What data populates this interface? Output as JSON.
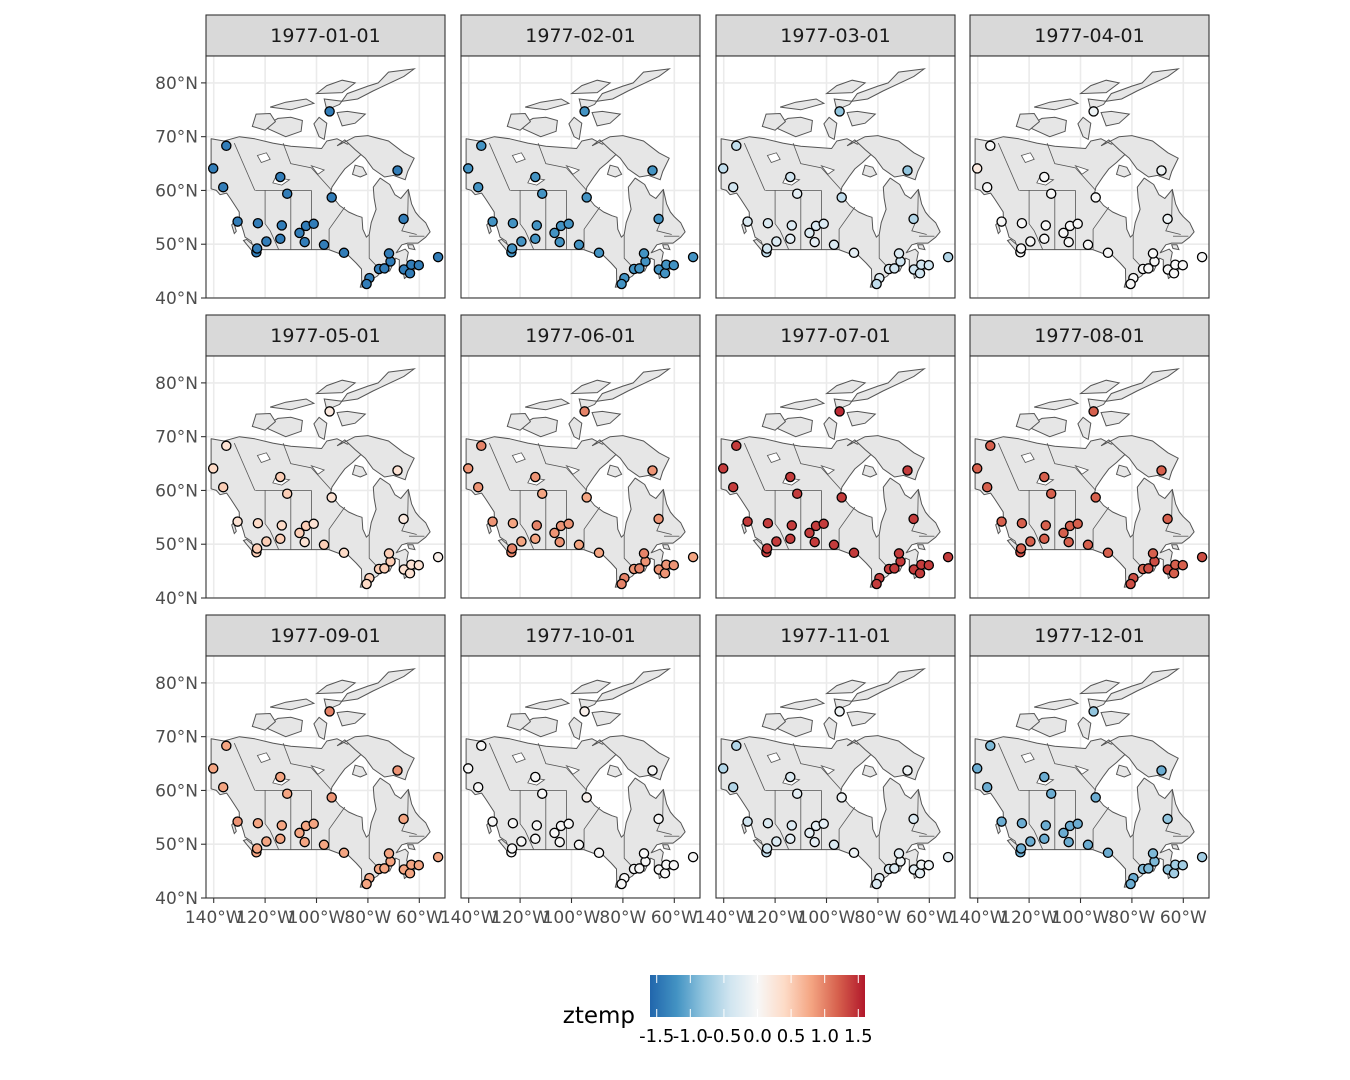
{
  "chart_data": {
    "type": "map",
    "region": "Canada",
    "facet_labels": [
      "1977-01-01",
      "1977-02-01",
      "1977-03-01",
      "1977-04-01",
      "1977-05-01",
      "1977-06-01",
      "1977-07-01",
      "1977-08-01",
      "1977-09-01",
      "1977-10-01",
      "1977-11-01",
      "1977-12-01"
    ],
    "y_tick_labels": [
      "80°N",
      "70°N",
      "60°N",
      "50°N",
      "40°N"
    ],
    "y_tick_values": [
      80,
      70,
      60,
      50,
      40
    ],
    "x_tick_labels": [
      "140°W",
      "120°W",
      "100°W",
      "80°W",
      "60°W"
    ],
    "x_tick_values": [
      -140,
      -120,
      -100,
      -80,
      -60
    ],
    "xlim": [
      -143,
      -50
    ],
    "ylim": [
      40,
      85
    ],
    "grid": true,
    "legend": {
      "title": "ztemp",
      "position": "bottom",
      "tick_labels": [
        "-1.5",
        "-1.0",
        "-0.5",
        "0.0",
        "0.5",
        "1.0",
        "1.5"
      ],
      "tick_values": [
        -1.5,
        -1.0,
        -0.5,
        0.0,
        0.5,
        1.0,
        1.5
      ],
      "range": [
        -1.6,
        1.6
      ],
      "palette": [
        "#2166ac",
        "#4393c3",
        "#92c5de",
        "#d1e5f0",
        "#f7f7f7",
        "#fddbc7",
        "#f4a582",
        "#d6604d",
        "#b2182b"
      ]
    },
    "colors": {
      "land": "#e6e6e6",
      "border": "#555555",
      "panel_border": "#333333",
      "strip_fill": "#d9d9d9",
      "grid": "#ebebeb"
    },
    "stations": [
      {
        "lon": -140.2,
        "lat": 64.1
      },
      {
        "lon": -135.1,
        "lat": 68.3
      },
      {
        "lon": -136.3,
        "lat": 60.6
      },
      {
        "lon": -130.7,
        "lat": 54.2
      },
      {
        "lon": -123.4,
        "lat": 48.5
      },
      {
        "lon": -123.1,
        "lat": 49.2
      },
      {
        "lon": -119.5,
        "lat": 50.5
      },
      {
        "lon": -122.8,
        "lat": 53.9
      },
      {
        "lon": -114.1,
        "lat": 62.5
      },
      {
        "lon": -113.5,
        "lat": 53.5
      },
      {
        "lon": -114.1,
        "lat": 51.0
      },
      {
        "lon": -111.4,
        "lat": 59.4
      },
      {
        "lon": -106.6,
        "lat": 52.1
      },
      {
        "lon": -104.6,
        "lat": 50.4
      },
      {
        "lon": -104.1,
        "lat": 53.4
      },
      {
        "lon": -101.1,
        "lat": 53.8
      },
      {
        "lon": -97.1,
        "lat": 49.9
      },
      {
        "lon": -94.1,
        "lat": 58.7
      },
      {
        "lon": -94.9,
        "lat": 74.7
      },
      {
        "lon": -89.3,
        "lat": 48.4
      },
      {
        "lon": -79.4,
        "lat": 43.7
      },
      {
        "lon": -80.5,
        "lat": 42.6
      },
      {
        "lon": -75.7,
        "lat": 45.4
      },
      {
        "lon": -73.6,
        "lat": 45.5
      },
      {
        "lon": -71.2,
        "lat": 46.8
      },
      {
        "lon": -71.8,
        "lat": 48.3
      },
      {
        "lon": -68.5,
        "lat": 63.7
      },
      {
        "lon": -66.0,
        "lat": 45.3
      },
      {
        "lon": -66.1,
        "lat": 54.7
      },
      {
        "lon": -63.6,
        "lat": 44.6
      },
      {
        "lon": -63.1,
        "lat": 46.2
      },
      {
        "lon": -60.2,
        "lat": 46.1
      },
      {
        "lon": -52.7,
        "lat": 47.6
      }
    ],
    "ztemp": [
      [
        -1.4,
        -1.4,
        -1.4,
        -1.4,
        -1.4,
        -1.4,
        -1.4,
        -1.4,
        -1.4,
        -1.4,
        -1.4,
        -1.4,
        -1.4,
        -1.4,
        -1.4,
        -1.4,
        -1.4,
        -1.4,
        -1.4,
        -1.4,
        -1.4,
        -1.4,
        -1.4,
        -1.4,
        -1.4,
        -1.4,
        -1.4,
        -1.4,
        -1.4,
        -1.4,
        -1.4,
        -1.4,
        -1.4
      ],
      [
        -1.2,
        -1.2,
        -1.2,
        -1.2,
        -1.2,
        -1.2,
        -1.2,
        -1.2,
        -1.2,
        -1.2,
        -1.2,
        -1.2,
        -1.2,
        -1.2,
        -1.2,
        -1.2,
        -1.2,
        -1.2,
        -1.2,
        -1.2,
        -1.2,
        -1.2,
        -1.2,
        -1.2,
        -1.2,
        -1.2,
        -1.2,
        -1.2,
        -1.2,
        -1.2,
        -1.2,
        -1.2,
        -1.2
      ],
      [
        -0.5,
        -0.5,
        -0.4,
        -0.3,
        -0.5,
        -0.4,
        -0.3,
        -0.3,
        -0.4,
        -0.3,
        -0.2,
        -0.2,
        -0.3,
        -0.2,
        -0.3,
        -0.3,
        -0.3,
        -0.5,
        -0.8,
        -0.2,
        -0.3,
        -0.5,
        -0.3,
        -0.4,
        -0.4,
        -0.3,
        -0.8,
        -0.4,
        -0.6,
        -0.4,
        -0.4,
        -0.4,
        -0.6
      ],
      [
        0.2,
        0.0,
        0.0,
        0.0,
        0.0,
        0.0,
        0.0,
        0.0,
        0.0,
        0.0,
        0.0,
        0.0,
        0.0,
        0.0,
        0.0,
        0.0,
        0.0,
        0.0,
        -0.1,
        0.0,
        0.0,
        0.0,
        0.0,
        0.0,
        0.0,
        0.0,
        -0.1,
        0.0,
        -0.1,
        0.0,
        0.0,
        0.0,
        0.0
      ],
      [
        0.4,
        0.3,
        0.5,
        0.3,
        0.5,
        0.5,
        0.5,
        0.4,
        0.5,
        0.4,
        0.5,
        0.5,
        0.5,
        0.3,
        0.5,
        0.3,
        0.5,
        0.3,
        0.2,
        0.4,
        0.5,
        0.4,
        0.5,
        0.5,
        0.5,
        0.5,
        0.3,
        0.3,
        0.2,
        0.3,
        0.3,
        0.3,
        0.1
      ],
      [
        0.9,
        1.0,
        0.9,
        0.9,
        1.0,
        1.0,
        0.8,
        0.8,
        0.9,
        1.0,
        0.8,
        0.8,
        0.9,
        0.9,
        0.9,
        0.9,
        0.8,
        0.8,
        1.0,
        0.8,
        1.0,
        1.0,
        0.9,
        1.0,
        0.9,
        1.0,
        0.9,
        0.9,
        0.9,
        0.9,
        0.9,
        0.9,
        0.8
      ],
      [
        1.4,
        1.4,
        1.4,
        1.4,
        1.4,
        1.4,
        1.4,
        1.4,
        1.4,
        1.4,
        1.4,
        1.4,
        1.4,
        1.4,
        1.4,
        1.4,
        1.4,
        1.4,
        1.5,
        1.4,
        1.4,
        1.4,
        1.4,
        1.4,
        1.4,
        1.4,
        1.4,
        1.4,
        1.4,
        1.4,
        1.4,
        1.4,
        1.4
      ],
      [
        1.2,
        1.2,
        1.2,
        1.2,
        1.3,
        1.2,
        1.2,
        1.2,
        1.2,
        1.2,
        1.2,
        1.2,
        1.2,
        1.2,
        1.2,
        1.2,
        1.2,
        1.2,
        1.2,
        1.2,
        1.3,
        1.3,
        1.2,
        1.3,
        1.3,
        1.2,
        1.2,
        1.3,
        1.2,
        1.2,
        1.2,
        1.2,
        1.3
      ],
      [
        0.8,
        0.8,
        0.8,
        0.9,
        0.8,
        0.8,
        0.8,
        0.8,
        0.8,
        0.8,
        0.8,
        0.8,
        0.8,
        0.8,
        0.8,
        0.8,
        0.8,
        0.9,
        1.0,
        0.8,
        0.8,
        0.8,
        0.8,
        0.8,
        0.8,
        0.8,
        0.9,
        0.8,
        0.8,
        0.8,
        0.8,
        0.8,
        0.8
      ],
      [
        0.0,
        0.0,
        0.0,
        0.0,
        0.0,
        0.0,
        0.0,
        0.0,
        0.0,
        0.0,
        0.0,
        0.0,
        0.0,
        0.0,
        0.0,
        0.0,
        0.0,
        0.1,
        0.1,
        0.0,
        0.0,
        0.0,
        0.0,
        0.0,
        0.0,
        0.0,
        0.0,
        0.0,
        0.0,
        0.0,
        0.0,
        0.0,
        0.0
      ],
      [
        -0.6,
        -0.6,
        -0.6,
        -0.4,
        -0.5,
        -0.4,
        -0.3,
        -0.3,
        -0.3,
        -0.3,
        -0.2,
        -0.2,
        -0.2,
        -0.2,
        -0.2,
        -0.2,
        -0.3,
        -0.1,
        -0.1,
        -0.1,
        -0.2,
        -0.3,
        -0.3,
        -0.3,
        -0.1,
        -0.2,
        -0.1,
        -0.2,
        -0.3,
        -0.2,
        -0.1,
        -0.1,
        -0.2
      ],
      [
        -1.0,
        -0.9,
        -1.0,
        -1.0,
        -1.0,
        -1.0,
        -1.0,
        -1.0,
        -1.0,
        -1.0,
        -1.0,
        -1.0,
        -1.0,
        -1.0,
        -1.0,
        -1.0,
        -1.0,
        -1.0,
        -0.8,
        -1.0,
        -1.0,
        -1.0,
        -0.9,
        -0.9,
        -0.9,
        -0.9,
        -1.0,
        -0.8,
        -0.8,
        -0.7,
        -0.7,
        -0.7,
        -0.7
      ]
    ]
  }
}
